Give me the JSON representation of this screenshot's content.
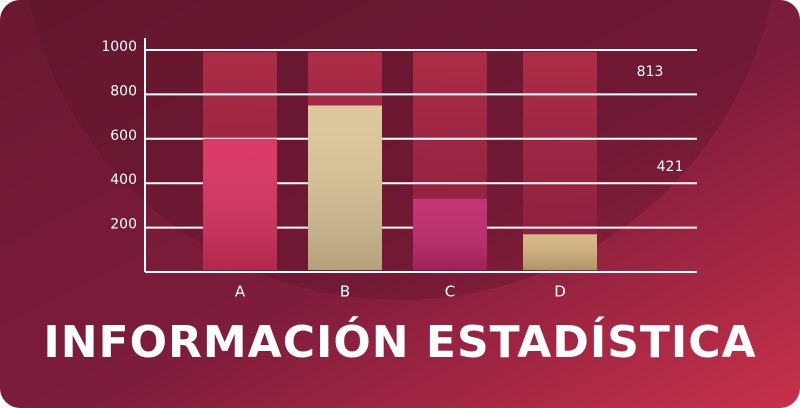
{
  "chart_data": {
    "type": "bar",
    "title": "INFORMACIÓN ESTADÍSTICA",
    "categories": [
      "A",
      "B",
      "C",
      "D"
    ],
    "values": [
      600,
      750,
      330,
      170
    ],
    "colors": [
      "#d8305e",
      "#dcc597",
      "#c0286a",
      "#d4b47c"
    ],
    "ylim": [
      0,
      1000
    ],
    "yticks": [
      200,
      400,
      600,
      800,
      1000
    ],
    "grid": true,
    "annotations": [
      "813",
      "421"
    ]
  }
}
